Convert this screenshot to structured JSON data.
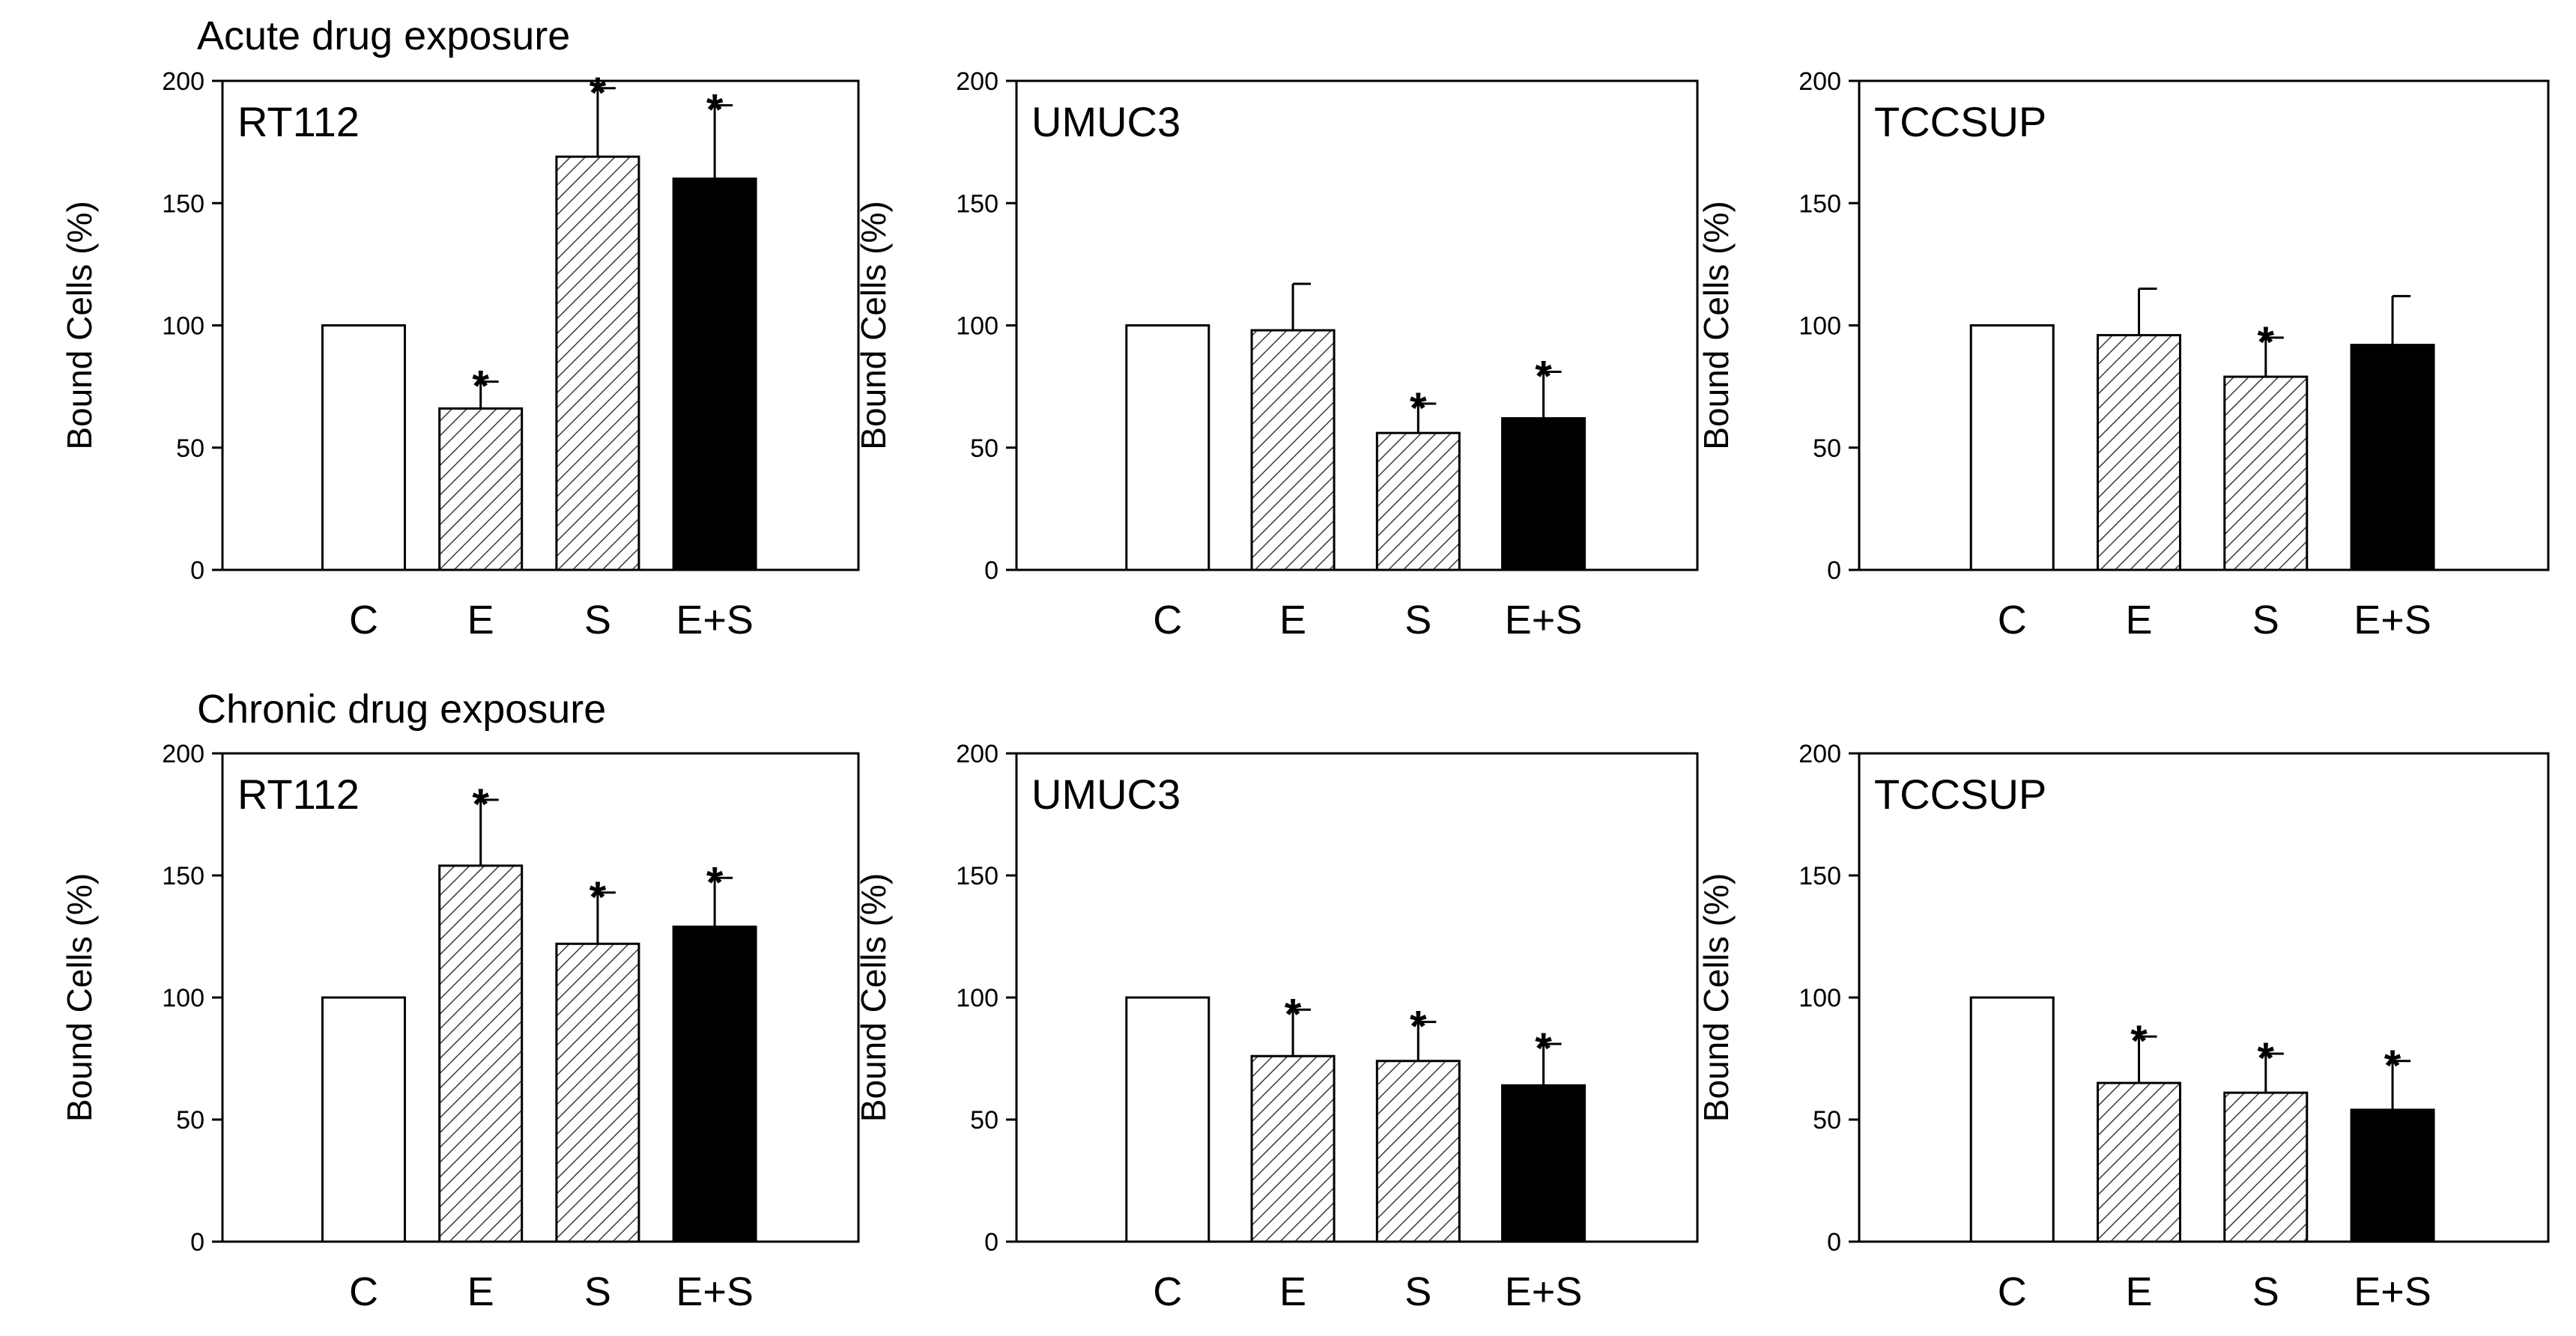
{
  "chart_data": [
    {
      "type": "bar",
      "group": "Acute drug exposure",
      "title": "RT112",
      "categories": [
        "C",
        "E",
        "S",
        "E+S"
      ],
      "values": [
        100,
        66,
        169,
        160
      ],
      "errors": [
        0,
        11,
        28,
        30
      ],
      "significant": [
        false,
        true,
        true,
        true
      ],
      "ylabel": "Bound Cells (%)",
      "ylim": [
        0,
        200
      ],
      "yticks": [
        0,
        50,
        100,
        150,
        200
      ]
    },
    {
      "type": "bar",
      "group": "Acute drug exposure",
      "title": "UMUC3",
      "categories": [
        "C",
        "E",
        "S",
        "E+S"
      ],
      "values": [
        100,
        98,
        56,
        62
      ],
      "errors": [
        0,
        19,
        12,
        19
      ],
      "significant": [
        false,
        false,
        true,
        true
      ],
      "ylabel": "Bound Cells (%)",
      "ylim": [
        0,
        200
      ],
      "yticks": [
        0,
        50,
        100,
        150,
        200
      ]
    },
    {
      "type": "bar",
      "group": "Acute drug exposure",
      "title": "TCCSUP",
      "categories": [
        "C",
        "E",
        "S",
        "E+S"
      ],
      "values": [
        100,
        96,
        79,
        92
      ],
      "errors": [
        0,
        19,
        16,
        20
      ],
      "significant": [
        false,
        false,
        true,
        false
      ],
      "ylabel": "Bound Cells (%)",
      "ylim": [
        0,
        200
      ],
      "yticks": [
        0,
        50,
        100,
        150,
        200
      ]
    },
    {
      "type": "bar",
      "group": "Chronic drug exposure",
      "title": "RT112",
      "categories": [
        "C",
        "E",
        "S",
        "E+S"
      ],
      "values": [
        100,
        154,
        122,
        129
      ],
      "errors": [
        0,
        27,
        21,
        20
      ],
      "significant": [
        false,
        true,
        true,
        true
      ],
      "ylabel": "Bound Cells (%)",
      "ylim": [
        0,
        200
      ],
      "yticks": [
        0,
        50,
        100,
        150,
        200
      ]
    },
    {
      "type": "bar",
      "group": "Chronic drug exposure",
      "title": "UMUC3",
      "categories": [
        "C",
        "E",
        "S",
        "E+S"
      ],
      "values": [
        100,
        76,
        74,
        64
      ],
      "errors": [
        0,
        19,
        16,
        17
      ],
      "significant": [
        false,
        true,
        true,
        true
      ],
      "ylabel": "Bound Cells (%)",
      "ylim": [
        0,
        200
      ],
      "yticks": [
        0,
        50,
        100,
        150,
        200
      ]
    },
    {
      "type": "bar",
      "group": "Chronic drug exposure",
      "title": "TCCSUP",
      "categories": [
        "C",
        "E",
        "S",
        "E+S"
      ],
      "values": [
        100,
        65,
        61,
        54
      ],
      "errors": [
        0,
        19,
        16,
        20
      ],
      "significant": [
        false,
        true,
        true,
        true
      ],
      "ylabel": "Bound Cells (%)",
      "ylim": [
        0,
        200
      ],
      "yticks": [
        0,
        50,
        100,
        150,
        200
      ]
    }
  ],
  "row_titles": [
    "Acute drug exposure",
    "Chronic drug exposure"
  ],
  "significance_marker": "*",
  "bar_styles": {
    "C": {
      "fill": "#ffffff",
      "pattern": "none"
    },
    "E": {
      "fill": "#ffffff",
      "pattern": "hatch"
    },
    "S": {
      "fill": "#ffffff",
      "pattern": "hatch"
    },
    "E+S": {
      "fill": "#000000",
      "pattern": "none"
    }
  }
}
